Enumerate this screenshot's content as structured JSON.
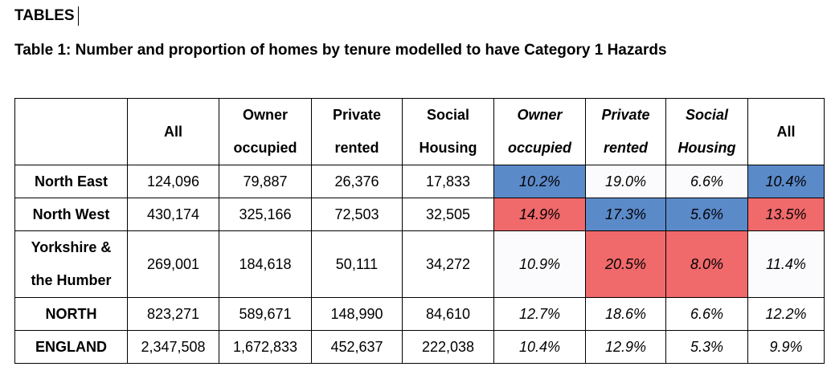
{
  "heading": "TABLES",
  "caption": "Table 1: Number and proportion of homes by tenure modelled to have Category 1 Hazards",
  "colors": {
    "blue": "#5b8ac9",
    "red": "#f0696b"
  },
  "table": {
    "headers": [
      {
        "line1": "",
        "line2": "All"
      },
      {
        "line1": "Owner",
        "line2": "occupied"
      },
      {
        "line1": "Private",
        "line2": "rented"
      },
      {
        "line1": "Social",
        "line2": "Housing"
      },
      {
        "line1": "Owner",
        "line2": "occupied"
      },
      {
        "line1": "Private",
        "line2": "rented"
      },
      {
        "line1": "Social",
        "line2": "Housing"
      },
      {
        "line1": "",
        "line2": "All"
      }
    ],
    "rows": [
      {
        "label1": "North East",
        "label2": "",
        "cells": [
          "124,096",
          "79,887",
          "26,376",
          "17,833",
          "10.2%",
          "19.0%",
          "6.6%",
          "10.4%"
        ],
        "highlight": [
          "",
          "",
          "",
          "",
          "blue",
          "",
          "",
          "blue"
        ]
      },
      {
        "label1": "North West",
        "label2": "",
        "cells": [
          "430,174",
          "325,166",
          "72,503",
          "32,505",
          "14.9%",
          "17.3%",
          "5.6%",
          "13.5%"
        ],
        "highlight": [
          "",
          "",
          "",
          "",
          "red",
          "blue",
          "blue",
          "red"
        ]
      },
      {
        "label1": "Yorkshire &",
        "label2": "the Humber",
        "cells": [
          "269,001",
          "184,618",
          "50,111",
          "34,272",
          "10.9%",
          "20.5%",
          "8.0%",
          "11.4%"
        ],
        "highlight": [
          "",
          "",
          "",
          "",
          "",
          "red",
          "red",
          ""
        ]
      },
      {
        "label1": "NORTH",
        "label2": "",
        "cells": [
          "823,271",
          "589,671",
          "148,990",
          "84,610",
          "12.7%",
          "18.6%",
          "6.6%",
          "12.2%"
        ],
        "highlight": [
          "",
          "",
          "",
          "",
          "",
          "",
          "",
          ""
        ]
      },
      {
        "label1": "ENGLAND",
        "label2": "",
        "cells": [
          "2,347,508",
          "1,672,833",
          "452,637",
          "222,038",
          "10.4%",
          "12.9%",
          "5.3%",
          "9.9%"
        ],
        "highlight": [
          "",
          "",
          "",
          "",
          "",
          "",
          "",
          ""
        ]
      }
    ]
  }
}
